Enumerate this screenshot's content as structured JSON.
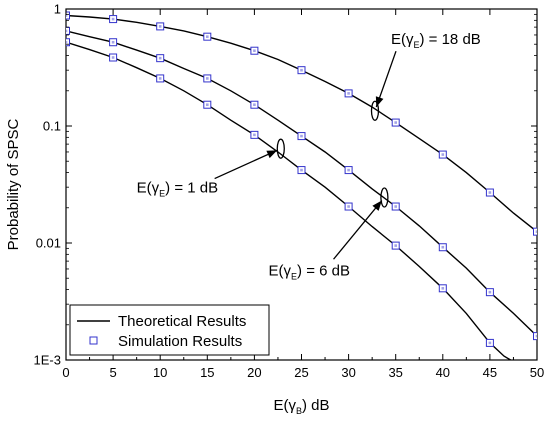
{
  "chart_data": {
    "type": "line",
    "title": "",
    "xlabel": {
      "main": "E(γ",
      "sub": "B",
      "tail": ") dB"
    },
    "ylabel": "Probability of SPSC",
    "xlim": [
      0,
      50
    ],
    "ylim": [
      0.001,
      1
    ],
    "yscale": "log",
    "grid": false,
    "xticks": [
      0,
      5,
      10,
      15,
      20,
      25,
      30,
      35,
      40,
      45,
      50
    ],
    "xtick_labels": [
      "0",
      "5",
      "10",
      "15",
      "20",
      "25",
      "30",
      "35",
      "40",
      "45",
      "50"
    ],
    "yticks": [
      0.001,
      0.01,
      0.1,
      1
    ],
    "ytick_labels": [
      "1E-3",
      "0.01",
      "0.1",
      "1"
    ],
    "legend": {
      "placement": "bottom-left",
      "entries": [
        {
          "label": "Theoretical Results",
          "marker": "line"
        },
        {
          "label": "Simulation Results",
          "marker": "square"
        }
      ]
    },
    "colors": {
      "line": "#000000",
      "marker": "#3333cc"
    },
    "series": [
      {
        "curve": [
          [
            0,
            0.52
          ],
          [
            2.5,
            0.45
          ],
          [
            5,
            0.385
          ],
          [
            7.5,
            0.315
          ],
          [
            10,
            0.255
          ],
          [
            12.5,
            0.2
          ],
          [
            15,
            0.152
          ],
          [
            17.5,
            0.112
          ],
          [
            20,
            0.084
          ],
          [
            22.5,
            0.06
          ],
          [
            25,
            0.042
          ],
          [
            27.5,
            0.03
          ],
          [
            30,
            0.0205
          ],
          [
            32.5,
            0.0138
          ],
          [
            35,
            0.0095
          ],
          [
            37.5,
            0.0063
          ],
          [
            40,
            0.0041
          ],
          [
            42.5,
            0.0025
          ],
          [
            45,
            0.0014
          ],
          [
            46.5,
            0.00108
          ],
          [
            47.2,
            0.001
          ]
        ],
        "markers": [
          [
            0,
            0.52
          ],
          [
            5,
            0.385
          ],
          [
            10,
            0.255
          ],
          [
            15,
            0.152
          ],
          [
            20,
            0.084
          ],
          [
            25,
            0.042
          ],
          [
            30,
            0.0205
          ],
          [
            35,
            0.0095
          ],
          [
            40,
            0.0041
          ],
          [
            45,
            0.0014
          ]
        ]
      },
      {
        "curve": [
          [
            0,
            0.65
          ],
          [
            2.5,
            0.58
          ],
          [
            5,
            0.52
          ],
          [
            7.5,
            0.445
          ],
          [
            10,
            0.38
          ],
          [
            12.5,
            0.31
          ],
          [
            15,
            0.255
          ],
          [
            17.5,
            0.2
          ],
          [
            20,
            0.152
          ],
          [
            22.5,
            0.112
          ],
          [
            25,
            0.082
          ],
          [
            27.5,
            0.06
          ],
          [
            30,
            0.042
          ],
          [
            32.5,
            0.029
          ],
          [
            35,
            0.0205
          ],
          [
            37.5,
            0.014
          ],
          [
            40,
            0.0092
          ],
          [
            42.5,
            0.0061
          ],
          [
            45,
            0.0038
          ],
          [
            47.5,
            0.0025
          ],
          [
            50,
            0.0016
          ]
        ],
        "markers": [
          [
            0,
            0.65
          ],
          [
            5,
            0.52
          ],
          [
            10,
            0.38
          ],
          [
            15,
            0.255
          ],
          [
            20,
            0.152
          ],
          [
            25,
            0.082
          ],
          [
            30,
            0.042
          ],
          [
            35,
            0.0205
          ],
          [
            40,
            0.0092
          ],
          [
            45,
            0.0038
          ],
          [
            50,
            0.0016
          ]
        ]
      },
      {
        "curve": [
          [
            0,
            0.88
          ],
          [
            2.5,
            0.855
          ],
          [
            5,
            0.82
          ],
          [
            7.5,
            0.77
          ],
          [
            10,
            0.71
          ],
          [
            12.5,
            0.65
          ],
          [
            15,
            0.58
          ],
          [
            17.5,
            0.51
          ],
          [
            20,
            0.44
          ],
          [
            22.5,
            0.37
          ],
          [
            25,
            0.3
          ],
          [
            27.5,
            0.24
          ],
          [
            30,
            0.19
          ],
          [
            32.5,
            0.145
          ],
          [
            35,
            0.107
          ],
          [
            37.5,
            0.078
          ],
          [
            40,
            0.057
          ],
          [
            42.5,
            0.04
          ],
          [
            45,
            0.027
          ],
          [
            47.5,
            0.018
          ],
          [
            50,
            0.0125
          ]
        ],
        "markers": [
          [
            0,
            0.88
          ],
          [
            5,
            0.82
          ],
          [
            10,
            0.71
          ],
          [
            15,
            0.58
          ],
          [
            20,
            0.44
          ],
          [
            25,
            0.3
          ],
          [
            30,
            0.19
          ],
          [
            35,
            0.107
          ],
          [
            40,
            0.057
          ],
          [
            45,
            0.027
          ],
          [
            50,
            0.0125
          ]
        ]
      }
    ],
    "annotations": [
      {
        "main": "E(γ",
        "sub": "E",
        "tail": ") = 18 dB",
        "ellipse_at": [
          32.8,
          0.135
        ],
        "text_at": [
          34.5,
          0.5
        ]
      },
      {
        "main": "E(γ",
        "sub": "E",
        "tail": ") = 1 dB",
        "ellipse_at": [
          22.8,
          0.064
        ],
        "text_at": [
          7.5,
          0.027
        ]
      },
      {
        "main": "E(γ",
        "sub": "E",
        "tail": ") = 6 dB",
        "ellipse_at": [
          33.8,
          0.0245
        ],
        "text_at": [
          21.5,
          0.0053
        ]
      }
    ]
  }
}
